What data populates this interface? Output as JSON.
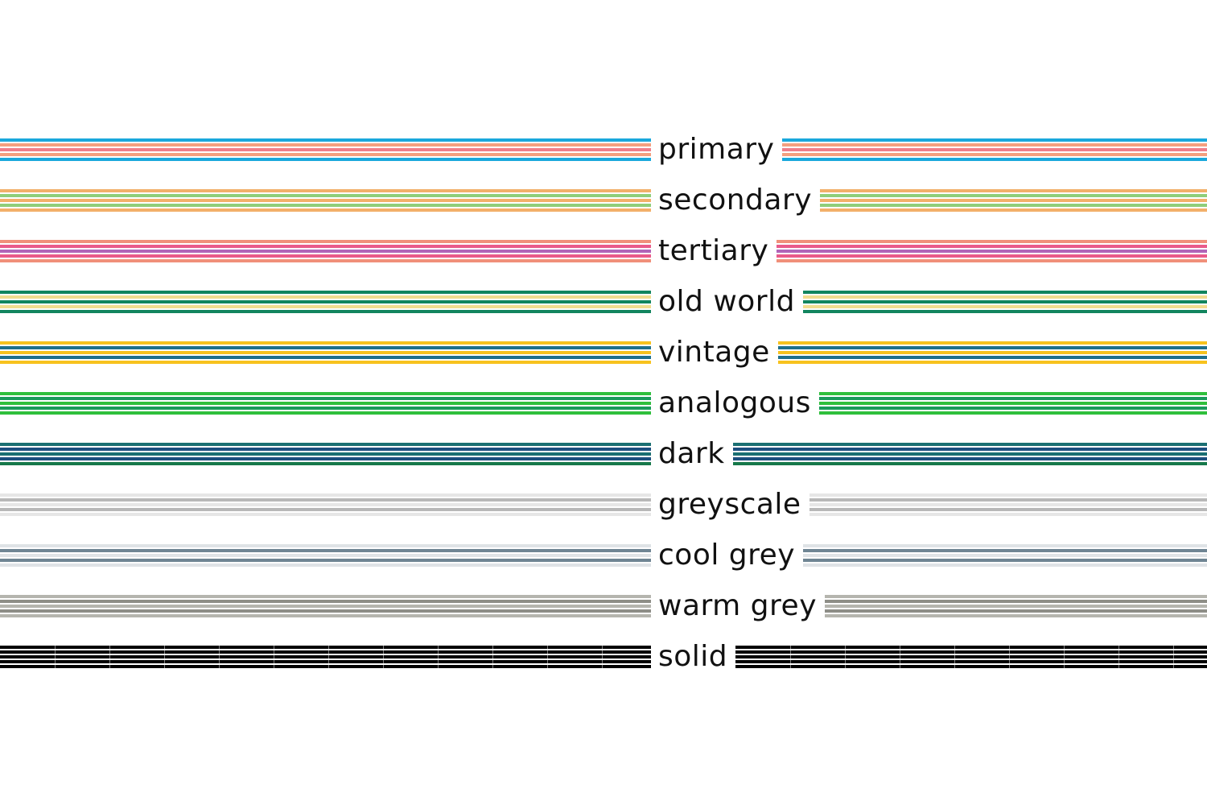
{
  "palettes": [
    {
      "label": "primary",
      "colors": [
        "#1aa8dc",
        "#f4a07f",
        "#ef7f8a",
        "#f4a07f",
        "#1aa8dc"
      ]
    },
    {
      "label": "secondary",
      "colors": [
        "#f2b06a",
        "#8fce7a",
        "#f2b06a",
        "#8fce7a",
        "#f2b06a"
      ]
    },
    {
      "label": "tertiary",
      "colors": [
        "#f0907a",
        "#e95a8a",
        "#b065b8",
        "#e95a8a",
        "#f0907a"
      ]
    },
    {
      "label": "old world",
      "colors": [
        "#12855e",
        "#f2dd8e",
        "#12855e",
        "#f2dd8e",
        "#12855e"
      ]
    },
    {
      "label": "vintage",
      "colors": [
        "#f7c21e",
        "#1f6f8b",
        "#f7c21e",
        "#1f6f8b",
        "#f7c21e"
      ]
    },
    {
      "label": "analogous",
      "colors": [
        "#2fbf3c",
        "#1a9a5a",
        "#2fbf3c",
        "#1a9a5a",
        "#2fbf3c"
      ]
    },
    {
      "label": "dark",
      "colors": [
        "#1a6f72",
        "#1d4e7e",
        "#1a6f72",
        "#1d4e7e",
        "#16784a"
      ]
    },
    {
      "label": "greyscale",
      "colors": [
        "#e6e6e6",
        "#b8b8b8",
        "#e6e6e6",
        "#b8b8b8",
        "#e6e6e6"
      ]
    },
    {
      "label": "cool grey",
      "colors": [
        "#dfe3e6",
        "#6f8593",
        "#dfe3e6",
        "#6f8593",
        "#dfe3e6"
      ]
    },
    {
      "label": "warm grey",
      "colors": [
        "#b5b5ae",
        "#8e8e87",
        "#b5b5ae",
        "#8e8e87",
        "#b5b5ae"
      ]
    },
    {
      "label": "solid",
      "colors": [
        "#000000",
        "#000000",
        "#000000",
        "#000000",
        "#000000"
      ]
    }
  ]
}
